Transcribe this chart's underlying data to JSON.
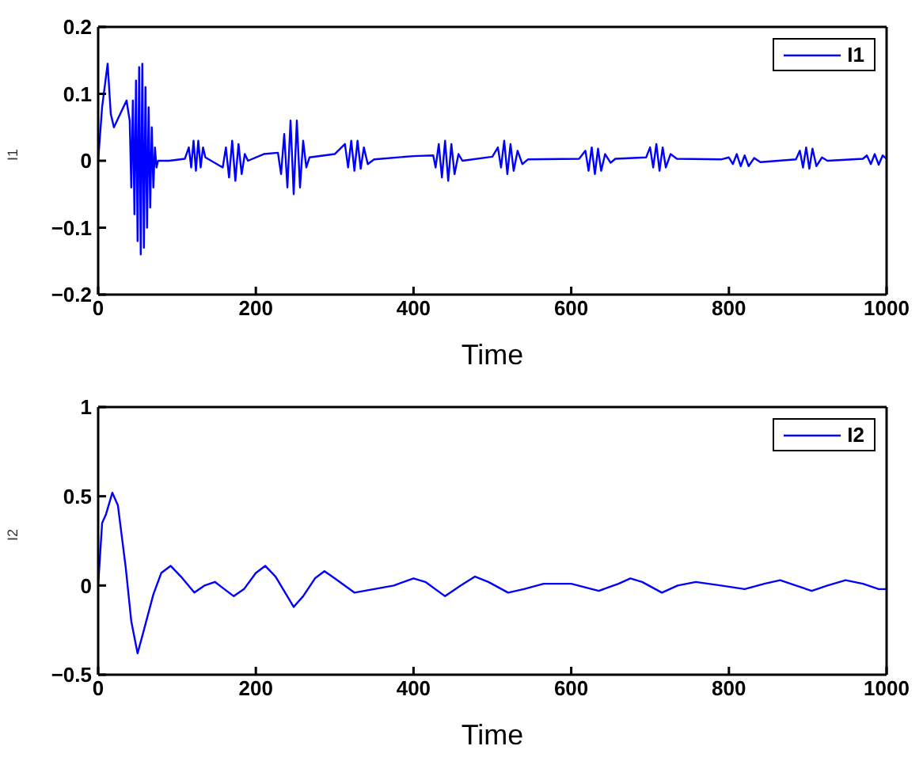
{
  "chart_data": [
    {
      "type": "line",
      "xlabel": "Time",
      "ylabel": "I1",
      "xlim": [
        0,
        1000
      ],
      "xticks": [
        0,
        200,
        400,
        600,
        800,
        1000
      ],
      "ylim": [
        -0.2,
        0.2
      ],
      "yticks": [
        -0.2,
        -0.1,
        0,
        0.1,
        0.2
      ],
      "legend": "top right",
      "marker": "none",
      "line_style": "solid",
      "series": [
        {
          "name": "I1",
          "color": "#0000ff",
          "x": [
            0,
            5,
            12,
            16,
            20,
            28,
            36,
            40,
            42,
            44,
            46,
            48,
            50,
            52,
            54,
            56,
            58,
            60,
            62,
            64,
            66,
            68,
            70,
            72,
            74,
            76,
            90,
            110,
            115,
            118,
            121,
            124,
            127,
            130,
            133,
            136,
            158,
            162,
            166,
            170,
            174,
            178,
            182,
            186,
            190,
            210,
            228,
            232,
            236,
            240,
            244,
            248,
            252,
            256,
            260,
            264,
            268,
            300,
            313,
            317,
            321,
            325,
            329,
            333,
            337,
            342,
            350,
            400,
            425,
            428,
            432,
            436,
            440,
            444,
            448,
            452,
            457,
            462,
            500,
            507,
            511,
            515,
            519,
            523,
            527,
            532,
            538,
            545,
            610,
            618,
            622,
            626,
            630,
            634,
            638,
            643,
            650,
            656,
            695,
            700,
            704,
            708,
            712,
            716,
            720,
            726,
            734,
            790,
            800,
            805,
            810,
            815,
            820,
            825,
            832,
            840,
            885,
            890,
            894,
            898,
            902,
            906,
            911,
            918,
            925,
            970,
            975,
            980,
            985,
            990,
            995,
            1000
          ],
          "values": [
            0,
            0.08,
            0.145,
            0.07,
            0.05,
            0.07,
            0.09,
            0.06,
            -0.04,
            0.09,
            -0.08,
            0.12,
            -0.12,
            0.14,
            -0.14,
            0.145,
            -0.13,
            0.11,
            -0.1,
            0.08,
            -0.07,
            0.05,
            -0.04,
            0.02,
            -0.01,
            0,
            0,
            0.003,
            0.02,
            -0.01,
            0.03,
            -0.015,
            0.03,
            -0.01,
            0.02,
            0.005,
            -0.01,
            0.02,
            -0.025,
            0.03,
            -0.03,
            0.025,
            -0.02,
            0.01,
            0,
            0.01,
            0.012,
            -0.02,
            0.04,
            -0.04,
            0.06,
            -0.05,
            0.06,
            -0.04,
            0.03,
            -0.01,
            0.005,
            0.01,
            0.025,
            -0.01,
            0.03,
            -0.015,
            0.03,
            -0.012,
            0.02,
            -0.005,
            0.002,
            0.007,
            0.008,
            -0.01,
            0.025,
            -0.025,
            0.03,
            -0.03,
            0.025,
            -0.02,
            0.01,
            0,
            0.006,
            0.02,
            -0.01,
            0.03,
            -0.02,
            0.025,
            -0.015,
            0.015,
            -0.005,
            0.002,
            0.003,
            0.015,
            -0.015,
            0.02,
            -0.02,
            0.018,
            -0.015,
            0.01,
            -0.003,
            0.003,
            0.005,
            0.02,
            -0.01,
            0.025,
            -0.015,
            0.02,
            -0.01,
            0.01,
            0.003,
            0.002,
            0.005,
            -0.005,
            0.01,
            -0.008,
            0.008,
            -0.008,
            0.004,
            -0.002,
            0.002,
            0.015,
            -0.01,
            0.02,
            -0.012,
            0.018,
            -0.008,
            0.005,
            0,
            0.003,
            0.008,
            -0.005,
            0.01,
            -0.006,
            0.008,
            0.003
          ]
        }
      ]
    },
    {
      "type": "line",
      "xlabel": "Time",
      "ylabel": "I2",
      "xlim": [
        0,
        1000
      ],
      "xticks": [
        0,
        200,
        400,
        600,
        800,
        1000
      ],
      "ylim": [
        -0.5,
        1
      ],
      "yticks": [
        -0.5,
        0,
        0.5,
        1
      ],
      "legend": "top right",
      "marker": "none",
      "line_style": "solid",
      "series": [
        {
          "name": "I2",
          "color": "#0000ff",
          "x": [
            0,
            5,
            10,
            18,
            25,
            35,
            42,
            50,
            58,
            70,
            80,
            92,
            105,
            122,
            135,
            148,
            160,
            172,
            185,
            200,
            212,
            225,
            248,
            260,
            275,
            287,
            300,
            325,
            350,
            375,
            400,
            415,
            440,
            460,
            478,
            495,
            520,
            540,
            565,
            600,
            635,
            660,
            675,
            690,
            715,
            735,
            758,
            790,
            820,
            845,
            865,
            885,
            905,
            925,
            948,
            970,
            990,
            1000
          ],
          "values": [
            0,
            0.35,
            0.4,
            0.52,
            0.45,
            0.1,
            -0.2,
            -0.38,
            -0.25,
            -0.05,
            0.07,
            0.11,
            0.05,
            -0.04,
            0,
            0.02,
            -0.02,
            -0.06,
            -0.02,
            0.07,
            0.11,
            0.05,
            -0.12,
            -0.06,
            0.04,
            0.08,
            0.04,
            -0.04,
            -0.02,
            0,
            0.04,
            0.02,
            -0.06,
            0,
            0.05,
            0.02,
            -0.04,
            -0.02,
            0.01,
            0.01,
            -0.03,
            0.01,
            0.04,
            0.02,
            -0.04,
            0,
            0.02,
            0,
            -0.02,
            0.01,
            0.03,
            0,
            -0.03,
            0,
            0.03,
            0.01,
            -0.02,
            -0.02
          ]
        }
      ]
    }
  ]
}
